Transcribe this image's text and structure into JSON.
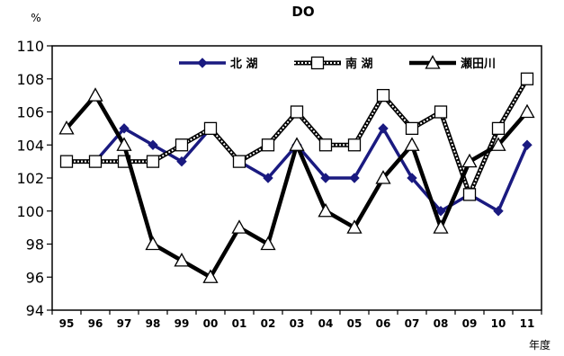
{
  "chart_data": {
    "type": "line",
    "title": "DO",
    "ylabel": "%",
    "xlabel": "年度",
    "ylim": [
      94,
      110
    ],
    "yticks": [
      94,
      96,
      98,
      100,
      102,
      104,
      106,
      108,
      110
    ],
    "categories": [
      "95",
      "96",
      "97",
      "98",
      "99",
      "00",
      "01",
      "02",
      "03",
      "04",
      "05",
      "06",
      "07",
      "08",
      "09",
      "10",
      "11"
    ],
    "grid": false,
    "legend_position": "top",
    "series": [
      {
        "name": "北 湖",
        "color": "#1a1a80",
        "marker": "diamond",
        "values": [
          103,
          103,
          105,
          104,
          103,
          105,
          103,
          102,
          104,
          102,
          102,
          105,
          102,
          100,
          101,
          100,
          104
        ]
      },
      {
        "name": "南 湖",
        "color": "#000000",
        "marker": "square",
        "dashed": true,
        "values": [
          103,
          103,
          103,
          103,
          104,
          105,
          103,
          104,
          106,
          104,
          104,
          107,
          105,
          106,
          101,
          105,
          108
        ]
      },
      {
        "name": "瀬田川",
        "color": "#000000",
        "marker": "triangle",
        "values": [
          105,
          107,
          104,
          98,
          97,
          96,
          99,
          98,
          104,
          100,
          99,
          102,
          104,
          99,
          103,
          104,
          106
        ]
      }
    ]
  }
}
